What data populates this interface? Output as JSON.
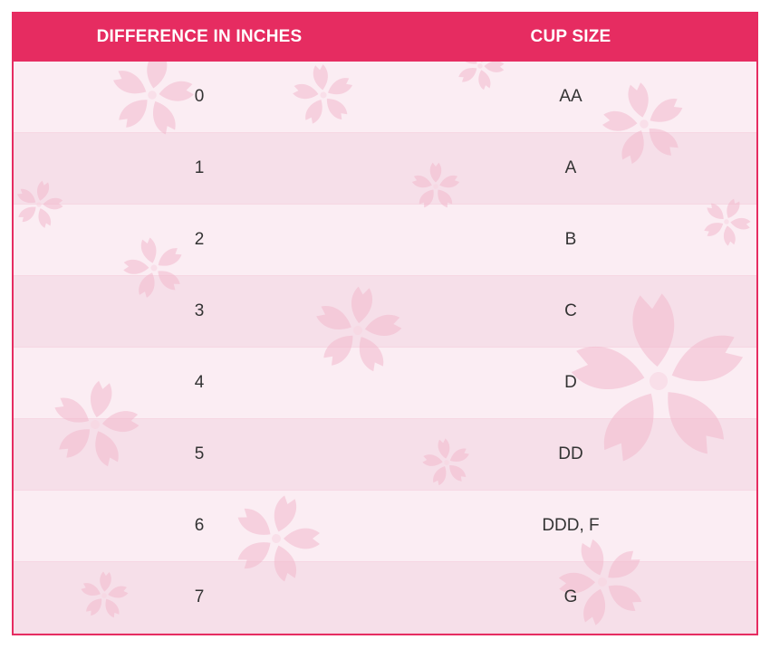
{
  "table": {
    "headers": {
      "difference": "DIFFERENCE IN INCHES",
      "cup_size": "CUP SIZE"
    },
    "rows": [
      {
        "difference": "0",
        "cup_size": "AA"
      },
      {
        "difference": "1",
        "cup_size": "A"
      },
      {
        "difference": "2",
        "cup_size": "B"
      },
      {
        "difference": "3",
        "cup_size": "C"
      },
      {
        "difference": "4",
        "cup_size": "D"
      },
      {
        "difference": "5",
        "cup_size": "DD"
      },
      {
        "difference": "6",
        "cup_size": "DDD, F"
      },
      {
        "difference": "7",
        "cup_size": "G"
      }
    ]
  },
  "colors": {
    "header_bg": "#e62c61",
    "header_text": "#ffffff",
    "row_light": "#fbedf3",
    "row_dark": "#f6dfe9",
    "cell_text": "#333333",
    "flower": "#f3b9cd"
  },
  "decoration": {
    "watermark_icon": "cherry-blossom-icon"
  }
}
